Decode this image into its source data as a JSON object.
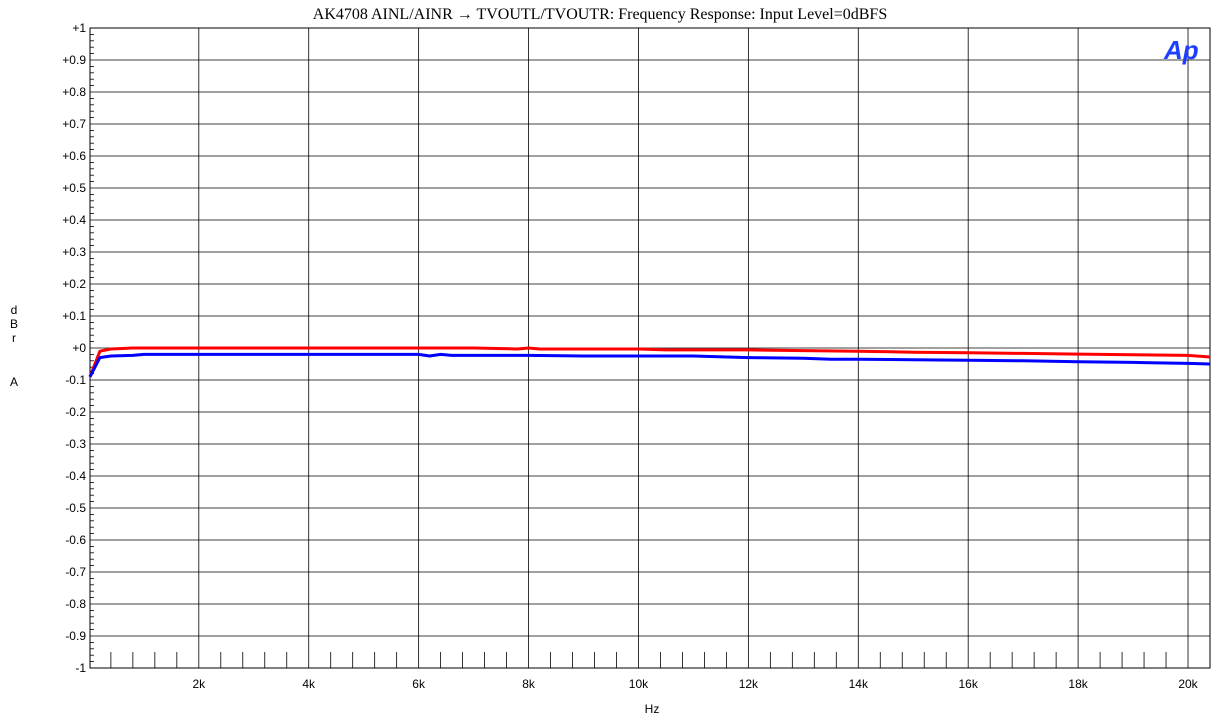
{
  "chart_data": {
    "type": "line",
    "title": "AK4708 AINL/AINR → TVOUTL/TVOUTR: Frequency Response: Input Level=0dBFS",
    "xlabel": "Hz",
    "ylabel_lines": [
      "d",
      "B",
      "r",
      "",
      "A"
    ],
    "xlim": [
      20,
      20400
    ],
    "ylim": [
      -1,
      1
    ],
    "x_ticks": [
      {
        "value": 2000,
        "label": "2k"
      },
      {
        "value": 4000,
        "label": "4k"
      },
      {
        "value": 6000,
        "label": "6k"
      },
      {
        "value": 8000,
        "label": "8k"
      },
      {
        "value": 10000,
        "label": "10k"
      },
      {
        "value": 12000,
        "label": "12k"
      },
      {
        "value": 14000,
        "label": "14k"
      },
      {
        "value": 16000,
        "label": "16k"
      },
      {
        "value": 18000,
        "label": "18k"
      },
      {
        "value": 20000,
        "label": "20k"
      }
    ],
    "y_ticks": [
      {
        "value": 1.0,
        "label": "+1"
      },
      {
        "value": 0.9,
        "label": "+0.9"
      },
      {
        "value": 0.8,
        "label": "+0.8"
      },
      {
        "value": 0.7,
        "label": "+0.7"
      },
      {
        "value": 0.6,
        "label": "+0.6"
      },
      {
        "value": 0.5,
        "label": "+0.5"
      },
      {
        "value": 0.4,
        "label": "+0.4"
      },
      {
        "value": 0.3,
        "label": "+0.3"
      },
      {
        "value": 0.2,
        "label": "+0.2"
      },
      {
        "value": 0.1,
        "label": "+0.1"
      },
      {
        "value": 0.0,
        "label": "+0"
      },
      {
        "value": -0.1,
        "label": "-0.1"
      },
      {
        "value": -0.2,
        "label": "-0.2"
      },
      {
        "value": -0.3,
        "label": "-0.3"
      },
      {
        "value": -0.4,
        "label": "-0.4"
      },
      {
        "value": -0.5,
        "label": "-0.5"
      },
      {
        "value": -0.6,
        "label": "-0.6"
      },
      {
        "value": -0.7,
        "label": "-0.7"
      },
      {
        "value": -0.8,
        "label": "-0.8"
      },
      {
        "value": -0.9,
        "label": "-0.9"
      },
      {
        "value": -1.0,
        "label": "-1"
      }
    ],
    "grid": true,
    "series": [
      {
        "color": "#ff0000",
        "x": [
          20,
          200,
          400,
          800,
          1500,
          3000,
          5000,
          6000,
          7000,
          7800,
          8000,
          8200,
          9000,
          10000,
          10500,
          11000,
          12000,
          13000,
          14000,
          15000,
          16000,
          17000,
          18000,
          19000,
          20000,
          20400
        ],
        "y": [
          -0.09,
          -0.01,
          -0.003,
          0.0,
          0.0,
          0.0,
          0.0,
          0.0,
          0.0,
          -0.003,
          0.0,
          -0.003,
          -0.003,
          -0.003,
          -0.006,
          -0.006,
          -0.006,
          -0.008,
          -0.01,
          -0.013,
          -0.015,
          -0.017,
          -0.019,
          -0.021,
          -0.023,
          -0.028
        ]
      },
      {
        "color": "#0000ff",
        "x": [
          20,
          200,
          400,
          800,
          1000,
          1500,
          3000,
          5000,
          6000,
          6200,
          6400,
          6600,
          7000,
          8000,
          9000,
          10000,
          11000,
          12000,
          13000,
          13500,
          14000,
          15000,
          16000,
          17000,
          18000,
          19000,
          20000,
          20400
        ],
        "y": [
          -0.09,
          -0.03,
          -0.025,
          -0.023,
          -0.02,
          -0.02,
          -0.02,
          -0.02,
          -0.02,
          -0.025,
          -0.02,
          -0.023,
          -0.023,
          -0.023,
          -0.025,
          -0.025,
          -0.025,
          -0.03,
          -0.032,
          -0.035,
          -0.035,
          -0.037,
          -0.038,
          -0.04,
          -0.043,
          -0.045,
          -0.048,
          -0.05
        ]
      }
    ]
  },
  "logo": {
    "text": "Ap",
    "color": "#1f3fff"
  }
}
